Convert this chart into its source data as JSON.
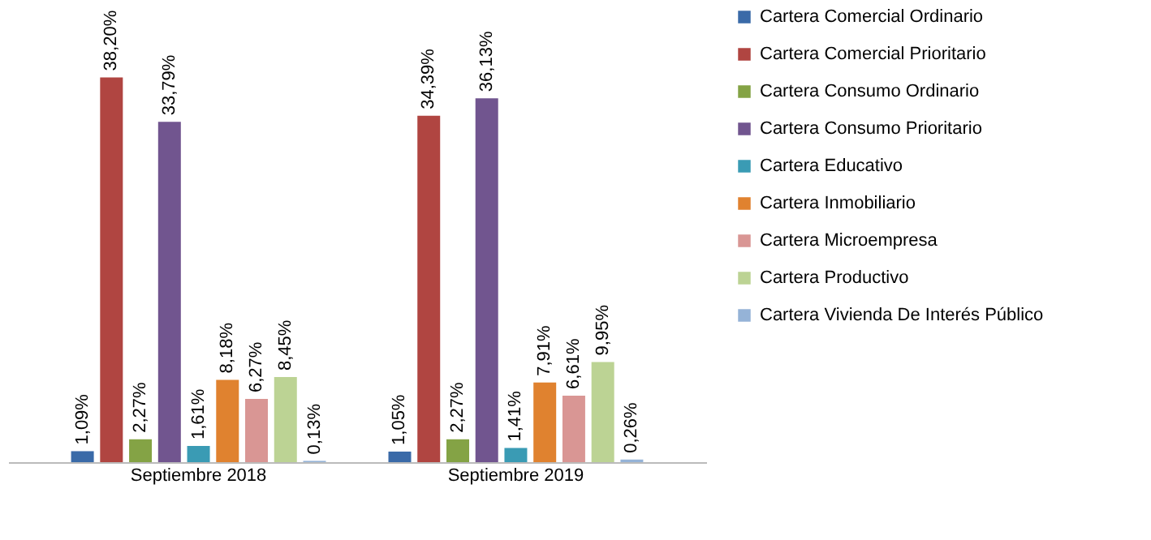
{
  "chart_data": {
    "type": "bar",
    "categories": [
      "Septiembre 2018",
      "Septiembre 2019"
    ],
    "series": [
      {
        "name": "Cartera Comercial Ordinario",
        "color": "#3a6aa8",
        "values": [
          1.09,
          1.05
        ],
        "value_labels": [
          "1,09%",
          "1,05%"
        ]
      },
      {
        "name": "Cartera Comercial Prioritario",
        "color": "#b04541",
        "values": [
          38.2,
          34.39
        ],
        "value_labels": [
          "38,20%",
          "34,39%"
        ]
      },
      {
        "name": "Cartera Consumo Ordinario",
        "color": "#84a345",
        "values": [
          2.27,
          2.27
        ],
        "value_labels": [
          "2,27%",
          "2,27%"
        ]
      },
      {
        "name": "Cartera Consumo Prioritario",
        "color": "#71558f",
        "values": [
          33.79,
          36.13
        ],
        "value_labels": [
          "33,79%",
          "36,13%"
        ]
      },
      {
        "name": "Cartera Educativo",
        "color": "#3a9bb4",
        "values": [
          1.61,
          1.41
        ],
        "value_labels": [
          "1,61%",
          "1,41%"
        ]
      },
      {
        "name": "Cartera Inmobiliario",
        "color": "#e0822f",
        "values": [
          8.18,
          7.91
        ],
        "value_labels": [
          "8,18%",
          "7,91%"
        ]
      },
      {
        "name": "Cartera Microempresa",
        "color": "#d99694",
        "values": [
          6.27,
          6.61
        ],
        "value_labels": [
          "6,27%",
          "6,61%"
        ]
      },
      {
        "name": "Cartera Productivo",
        "color": "#bcd394",
        "values": [
          8.45,
          9.95
        ],
        "value_labels": [
          "8,45%",
          "9,95%"
        ]
      },
      {
        "name": "Cartera Vivienda De Interés Público",
        "color": "#95b3d7",
        "values": [
          0.13,
          0.26
        ],
        "value_labels": [
          "0,13%",
          "0,26%"
        ]
      }
    ],
    "legend": "right",
    "grid": false
  }
}
